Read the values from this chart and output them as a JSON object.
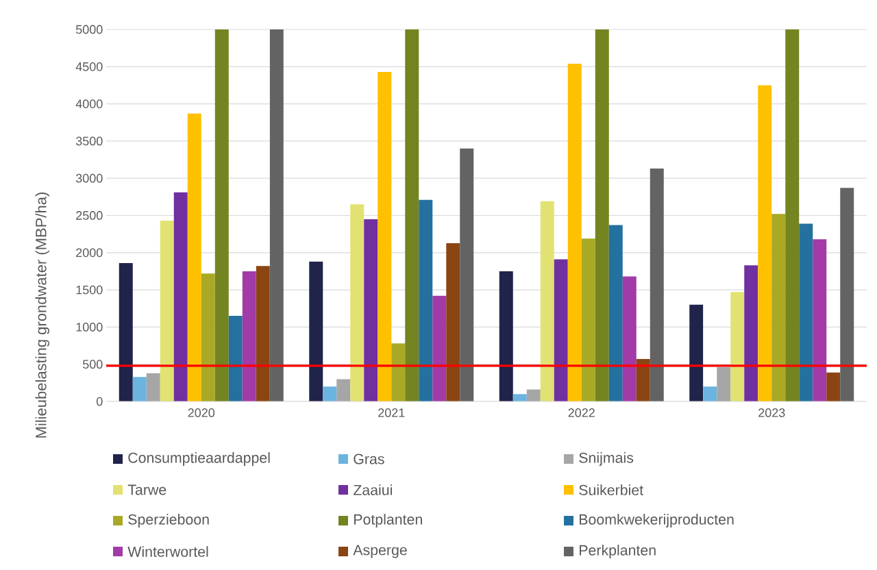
{
  "chart_data": {
    "type": "bar",
    "categories": [
      "2020",
      "2021",
      "2022",
      "2023"
    ],
    "ylabel": "Milieubelasting grondwater (MBP/ha)",
    "ylim": [
      0,
      5000
    ],
    "yticks": [
      0,
      500,
      1000,
      1500,
      2000,
      2500,
      3000,
      3500,
      4000,
      4500,
      5000
    ],
    "grid": "y",
    "legend": "bottom",
    "ref_lines": [
      {
        "axis": "y",
        "value": 480,
        "color": "#ff0000"
      }
    ],
    "series": [
      {
        "name": "Consumptieaardappel",
        "color": "#20234a",
        "values": [
          1860,
          1880,
          1750,
          1300
        ]
      },
      {
        "name": "Gras",
        "color": "#6cb4e0",
        "values": [
          330,
          200,
          100,
          200
        ]
      },
      {
        "name": "Snijmais",
        "color": "#a6a6a6",
        "values": [
          380,
          300,
          160,
          460
        ]
      },
      {
        "name": "Tarwe",
        "color": "#e2e272",
        "values": [
          2430,
          2650,
          2690,
          1470
        ]
      },
      {
        "name": "Zaaiui",
        "color": "#7030a0",
        "values": [
          2810,
          2450,
          1910,
          1830
        ]
      },
      {
        "name": "Suikerbiet",
        "color": "#ffc000",
        "values": [
          3870,
          4430,
          4540,
          4250
        ]
      },
      {
        "name": "Sperzieboon",
        "color": "#a9a926",
        "values": [
          1720,
          780,
          2190,
          2520
        ]
      },
      {
        "name": "Potplanten",
        "color": "#748421",
        "values": [
          5000,
          5000,
          5000,
          5000
        ]
      },
      {
        "name": "Boomkwekerijproducten",
        "color": "#2471a0",
        "values": [
          1150,
          2710,
          2370,
          2390
        ]
      },
      {
        "name": "Winterwortel",
        "color": "#a23aa8",
        "values": [
          1750,
          1420,
          1680,
          2180
        ]
      },
      {
        "name": "Asperge",
        "color": "#8b4513",
        "values": [
          1820,
          2130,
          570,
          390
        ]
      },
      {
        "name": "Perkplanten",
        "color": "#636363",
        "values": [
          5000,
          3400,
          3130,
          2870
        ]
      }
    ]
  }
}
